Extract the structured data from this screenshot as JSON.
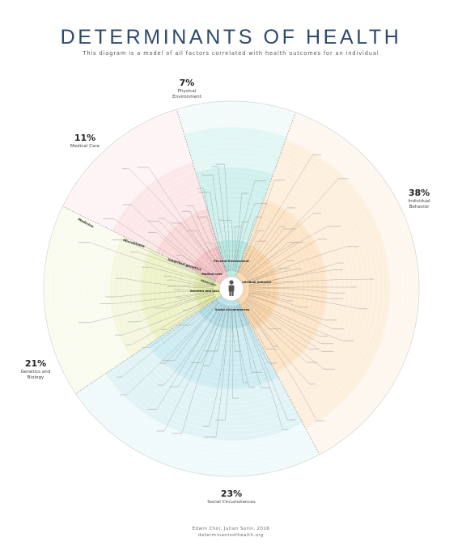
{
  "title": "DETERMINANTS OF HEALTH",
  "subtitle": "This diagram is a model of all factors correlated with health outcomes for an individual",
  "center_icon": "person-icon",
  "segments": {
    "physical": {
      "percent": "7%",
      "label_1": "Physical",
      "label_2": "Environment",
      "inner_label": "Physical Environment",
      "color": "#9fe0d8"
    },
    "medical": {
      "percent": "11%",
      "label_1": "Medical Care",
      "inner_label": "Medical care",
      "color": "#f5b3b5"
    },
    "individual": {
      "percent": "38%",
      "label_1": "Individual",
      "label_2": "Behavior",
      "inner_label": "Individual behavior",
      "color": "#f9c98f"
    },
    "social": {
      "percent": "23%",
      "label_1": "Social Circumstances",
      "inner_label": "Social circumstances",
      "color": "#9dd8e2"
    },
    "genetics": {
      "percent": "21%",
      "label_1": "Genetics and",
      "label_2": "Biology",
      "inner_label": "Genetics and biology",
      "color": "#dbe58e"
    }
  },
  "ring_labels": {
    "medicine": "Medicine",
    "microbiome": "Microbiome",
    "inherited": "Inherited genetics",
    "molecular": "Molecular"
  },
  "credit_line_1": "Edwin Choi, Julian Sorin, 2016",
  "credit_line_2": "determinantsofhealth.org"
}
